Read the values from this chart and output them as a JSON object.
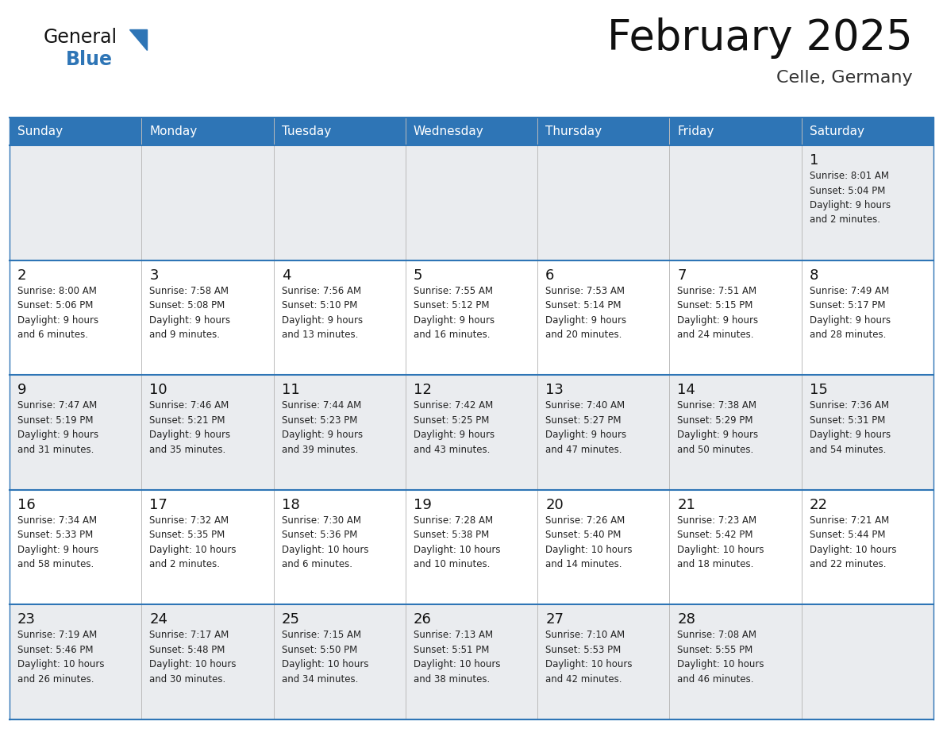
{
  "title": "February 2025",
  "subtitle": "Celle, Germany",
  "header_bg": "#2E75B6",
  "header_text_color": "#FFFFFF",
  "row_bg_odd": "#EAECEF",
  "row_bg_even": "#FFFFFF",
  "day_headers": [
    "Sunday",
    "Monday",
    "Tuesday",
    "Wednesday",
    "Thursday",
    "Friday",
    "Saturday"
  ],
  "grid_line_color": "#2E75B6",
  "day_number_color": "#111111",
  "text_color": "#222222",
  "logo_general_color": "#111111",
  "logo_blue_color": "#2E75B6",
  "weeks": [
    [
      {
        "day": "",
        "info": ""
      },
      {
        "day": "",
        "info": ""
      },
      {
        "day": "",
        "info": ""
      },
      {
        "day": "",
        "info": ""
      },
      {
        "day": "",
        "info": ""
      },
      {
        "day": "",
        "info": ""
      },
      {
        "day": "1",
        "info": "Sunrise: 8:01 AM\nSunset: 5:04 PM\nDaylight: 9 hours\nand 2 minutes."
      }
    ],
    [
      {
        "day": "2",
        "info": "Sunrise: 8:00 AM\nSunset: 5:06 PM\nDaylight: 9 hours\nand 6 minutes."
      },
      {
        "day": "3",
        "info": "Sunrise: 7:58 AM\nSunset: 5:08 PM\nDaylight: 9 hours\nand 9 minutes."
      },
      {
        "day": "4",
        "info": "Sunrise: 7:56 AM\nSunset: 5:10 PM\nDaylight: 9 hours\nand 13 minutes."
      },
      {
        "day": "5",
        "info": "Sunrise: 7:55 AM\nSunset: 5:12 PM\nDaylight: 9 hours\nand 16 minutes."
      },
      {
        "day": "6",
        "info": "Sunrise: 7:53 AM\nSunset: 5:14 PM\nDaylight: 9 hours\nand 20 minutes."
      },
      {
        "day": "7",
        "info": "Sunrise: 7:51 AM\nSunset: 5:15 PM\nDaylight: 9 hours\nand 24 minutes."
      },
      {
        "day": "8",
        "info": "Sunrise: 7:49 AM\nSunset: 5:17 PM\nDaylight: 9 hours\nand 28 minutes."
      }
    ],
    [
      {
        "day": "9",
        "info": "Sunrise: 7:47 AM\nSunset: 5:19 PM\nDaylight: 9 hours\nand 31 minutes."
      },
      {
        "day": "10",
        "info": "Sunrise: 7:46 AM\nSunset: 5:21 PM\nDaylight: 9 hours\nand 35 minutes."
      },
      {
        "day": "11",
        "info": "Sunrise: 7:44 AM\nSunset: 5:23 PM\nDaylight: 9 hours\nand 39 minutes."
      },
      {
        "day": "12",
        "info": "Sunrise: 7:42 AM\nSunset: 5:25 PM\nDaylight: 9 hours\nand 43 minutes."
      },
      {
        "day": "13",
        "info": "Sunrise: 7:40 AM\nSunset: 5:27 PM\nDaylight: 9 hours\nand 47 minutes."
      },
      {
        "day": "14",
        "info": "Sunrise: 7:38 AM\nSunset: 5:29 PM\nDaylight: 9 hours\nand 50 minutes."
      },
      {
        "day": "15",
        "info": "Sunrise: 7:36 AM\nSunset: 5:31 PM\nDaylight: 9 hours\nand 54 minutes."
      }
    ],
    [
      {
        "day": "16",
        "info": "Sunrise: 7:34 AM\nSunset: 5:33 PM\nDaylight: 9 hours\nand 58 minutes."
      },
      {
        "day": "17",
        "info": "Sunrise: 7:32 AM\nSunset: 5:35 PM\nDaylight: 10 hours\nand 2 minutes."
      },
      {
        "day": "18",
        "info": "Sunrise: 7:30 AM\nSunset: 5:36 PM\nDaylight: 10 hours\nand 6 minutes."
      },
      {
        "day": "19",
        "info": "Sunrise: 7:28 AM\nSunset: 5:38 PM\nDaylight: 10 hours\nand 10 minutes."
      },
      {
        "day": "20",
        "info": "Sunrise: 7:26 AM\nSunset: 5:40 PM\nDaylight: 10 hours\nand 14 minutes."
      },
      {
        "day": "21",
        "info": "Sunrise: 7:23 AM\nSunset: 5:42 PM\nDaylight: 10 hours\nand 18 minutes."
      },
      {
        "day": "22",
        "info": "Sunrise: 7:21 AM\nSunset: 5:44 PM\nDaylight: 10 hours\nand 22 minutes."
      }
    ],
    [
      {
        "day": "23",
        "info": "Sunrise: 7:19 AM\nSunset: 5:46 PM\nDaylight: 10 hours\nand 26 minutes."
      },
      {
        "day": "24",
        "info": "Sunrise: 7:17 AM\nSunset: 5:48 PM\nDaylight: 10 hours\nand 30 minutes."
      },
      {
        "day": "25",
        "info": "Sunrise: 7:15 AM\nSunset: 5:50 PM\nDaylight: 10 hours\nand 34 minutes."
      },
      {
        "day": "26",
        "info": "Sunrise: 7:13 AM\nSunset: 5:51 PM\nDaylight: 10 hours\nand 38 minutes."
      },
      {
        "day": "27",
        "info": "Sunrise: 7:10 AM\nSunset: 5:53 PM\nDaylight: 10 hours\nand 42 minutes."
      },
      {
        "day": "28",
        "info": "Sunrise: 7:08 AM\nSunset: 5:55 PM\nDaylight: 10 hours\nand 46 minutes."
      },
      {
        "day": "",
        "info": ""
      }
    ]
  ]
}
